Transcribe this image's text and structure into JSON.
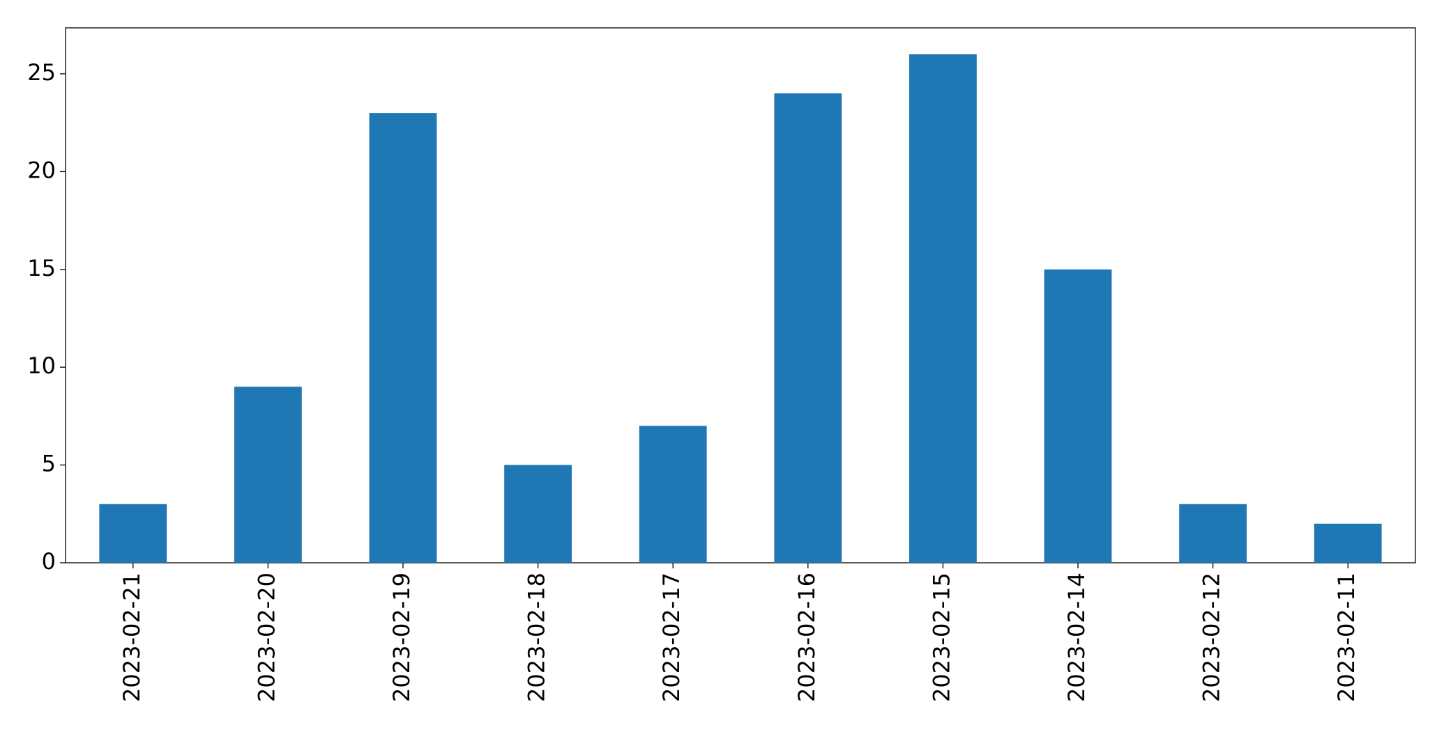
{
  "chart_data": {
    "type": "bar",
    "categories": [
      "2023-02-21",
      "2023-02-20",
      "2023-02-19",
      "2023-02-18",
      "2023-02-17",
      "2023-02-16",
      "2023-02-15",
      "2023-02-14",
      "2023-02-12",
      "2023-02-11"
    ],
    "values": [
      3,
      9,
      23,
      5,
      7,
      24,
      26,
      15,
      3,
      2
    ],
    "color": "#1f77b4",
    "ylim": [
      0,
      27.35
    ],
    "yticks": [
      0,
      5,
      10,
      15,
      20,
      25
    ],
    "grid": false
  }
}
